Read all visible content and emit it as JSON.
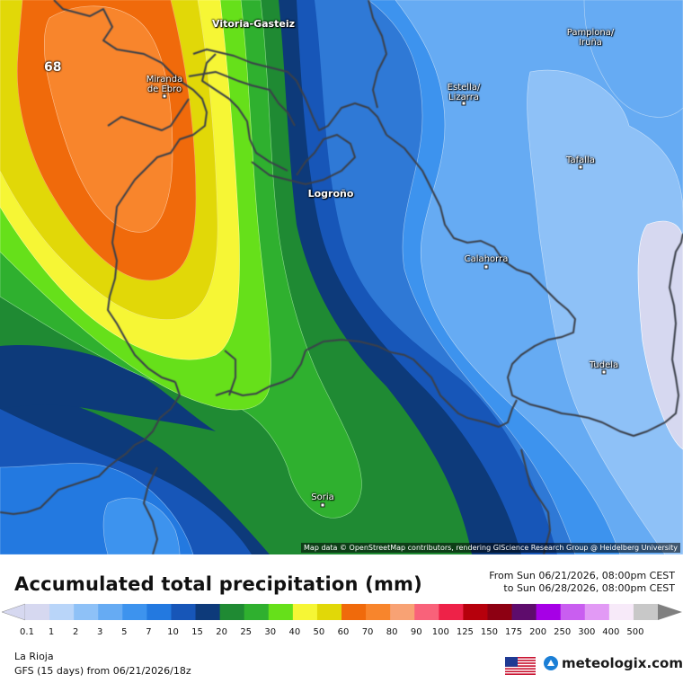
{
  "map": {
    "max_value_label": "68",
    "attribution": "Map data © OpenStreetMap contributors, rendering GIScience Research Group @ Heidelberg University",
    "cities": [
      {
        "name": "Vitoria-Gasteiz",
        "big": true
      },
      {
        "name": "Pamplona/\nIruña",
        "big": false
      },
      {
        "name": "Miranda\nde Ebro",
        "big": false
      },
      {
        "name": "Estella/\nLizarra",
        "big": false
      },
      {
        "name": "Tafalla",
        "big": false
      },
      {
        "name": "Logroño",
        "big": true
      },
      {
        "name": "Calahorra",
        "big": false
      },
      {
        "name": "Tudela",
        "big": false
      },
      {
        "name": "Soria",
        "big": false
      }
    ]
  },
  "header": {
    "title": "Accumulated total precipitation (mm)",
    "range_from": "From Sun 06/21/2026, 08:00pm CEST",
    "range_to": "to Sun 06/28/2026, 08:00pm CEST"
  },
  "legend": {
    "unit": "mm",
    "ticks": [
      "0.1",
      "1",
      "2",
      "3",
      "5",
      "7",
      "10",
      "15",
      "20",
      "25",
      "30",
      "40",
      "50",
      "60",
      "70",
      "80",
      "90",
      "100",
      "125",
      "150",
      "175",
      "200",
      "250",
      "300",
      "400",
      "500"
    ],
    "colors": [
      "#d6d8f0",
      "#b9d5f9",
      "#8ec1f7",
      "#66abf3",
      "#3d93ee",
      "#2379e0",
      "#1756b8",
      "#0d3a7a",
      "#1f8a33",
      "#2fb02f",
      "#66e01a",
      "#f6f635",
      "#e1d808",
      "#f06a0b",
      "#f8852c",
      "#f8a274",
      "#f9627a",
      "#ee2248",
      "#b6000c",
      "#8d0012",
      "#5e0c6c",
      "#a600e6",
      "#c95ef0",
      "#e29af5",
      "#f7eaf9",
      "#c8c8c8"
    ]
  },
  "footer": {
    "region": "La Rioja",
    "model": "GFS (15 days) from 06/21/2026/18z",
    "logo": "meteologix.com",
    "flag_icon": "us-flag-icon"
  }
}
